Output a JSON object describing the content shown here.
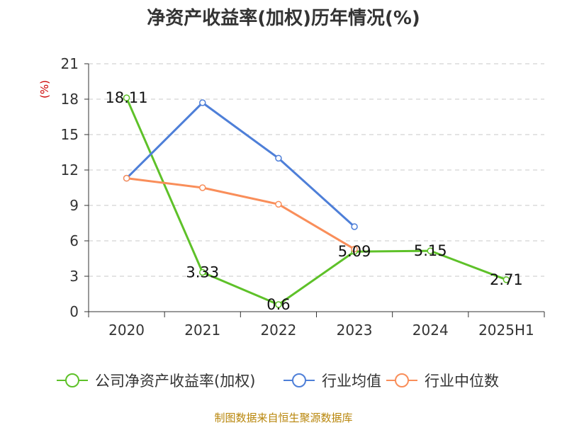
{
  "chart_data": {
    "type": "line",
    "title": "净资产收益率(加权)历年情况(%)",
    "unit_label": "(%)",
    "categories": [
      "2020",
      "2021",
      "2022",
      "2023",
      "2024",
      "2025H1"
    ],
    "y_ticks": [
      "0",
      "3",
      "6",
      "9",
      "12",
      "15",
      "18",
      "21"
    ],
    "ylim": [
      0,
      21
    ],
    "grid": true,
    "legend_position": "bottom",
    "series": [
      {
        "name": "公司净资产收益率(加权)",
        "color": "#5ec129",
        "values": [
          18.11,
          3.33,
          0.6,
          5.09,
          5.15,
          2.71
        ],
        "labels": [
          "18.11",
          "3.33",
          "0.6",
          "5.09",
          "5.15",
          "2.71"
        ]
      },
      {
        "name": "行业均值",
        "color": "#4e7fd8",
        "values": [
          11.3,
          17.7,
          13.0,
          7.2,
          null,
          null
        ]
      },
      {
        "name": "行业中位数",
        "color": "#f98e5a",
        "values": [
          11.3,
          10.5,
          9.1,
          5.3,
          null,
          null
        ]
      }
    ]
  },
  "footer": {
    "source": "制图数据来自恒生聚源数据库"
  }
}
